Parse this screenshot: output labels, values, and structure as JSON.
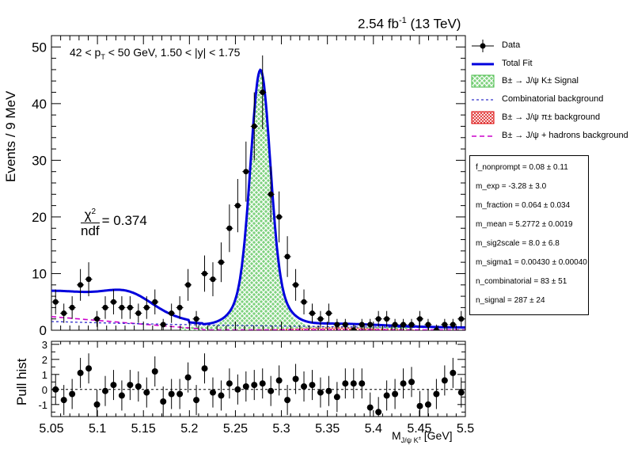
{
  "lumi_label": "2.54 fb",
  "lumi_exp": "-1",
  "lumi_energy": " (13 TeV)",
  "cut_label": {
    "part1": "42 < p",
    "sub": "T",
    "part2": " < 50 GeV, 1.50 < |y| < 1.75"
  },
  "chi2": {
    "num": "χ",
    "num_sup": "2",
    "den": "ndf",
    "value": " = 0.374"
  },
  "y_label_main": "Events / 9 MeV",
  "y_label_pull": "Pull hist",
  "x_label": {
    "base": "M",
    "sub": "J/ψ K",
    "sub_sup": "±",
    "unit": " [GeV]"
  },
  "legend": [
    {
      "label": "Data",
      "style": "data"
    },
    {
      "label": "Total Fit",
      "style": "line",
      "color": "#0000dd"
    },
    {
      "label": "B± → J/ψ K± Signal",
      "style": "hatch-green"
    },
    {
      "label": "Combinatorial background",
      "style": "dashed",
      "color": "#3333cc"
    },
    {
      "label": "B± → J/ψ π± background",
      "style": "hatch-red"
    },
    {
      "label": "B± → J/ψ + hadrons background",
      "style": "dashed",
      "color": "#cc00cc"
    }
  ],
  "fit_params": [
    "f_nonprompt =  0.08 ± 0.11",
    "m_exp = -3.28 ± 3.0",
    "m_fraction =  0.064 ± 0.034",
    "m_mean =  5.2772 ± 0.0019",
    "m_sig2scale =  8.0 ± 6.8",
    "m_sigma1 =  0.00430 ± 0.00040",
    "n_combinatorial =  83 ± 51",
    "n_signal =  287 ± 24"
  ],
  "chart_data": [
    {
      "type": "scatter",
      "panel": "main",
      "xlim": [
        5.05,
        5.5
      ],
      "ylim": [
        0,
        52
      ],
      "x_ticks": [
        5.05,
        5.1,
        5.15,
        5.2,
        5.25,
        5.3,
        5.35,
        5.4,
        5.45,
        5.5
      ],
      "y_ticks": [
        0,
        10,
        20,
        30,
        40,
        50
      ],
      "ylabel": "Events / 9 MeV",
      "series": [
        {
          "name": "Data",
          "x": [
            5.0545,
            5.0635,
            5.0725,
            5.0815,
            5.0905,
            5.0995,
            5.1085,
            5.1175,
            5.1265,
            5.1355,
            5.1445,
            5.1535,
            5.1625,
            5.1715,
            5.1805,
            5.1895,
            5.1985,
            5.2075,
            5.2165,
            5.2255,
            5.2345,
            5.2435,
            5.2525,
            5.2615,
            5.2705,
            5.2795,
            5.2885,
            5.2975,
            5.3065,
            5.3155,
            5.3245,
            5.3335,
            5.3425,
            5.3515,
            5.3605,
            5.3695,
            5.3785,
            5.3875,
            5.3965,
            5.4055,
            5.4145,
            5.4235,
            5.4325,
            5.4415,
            5.4505,
            5.4595,
            5.4685,
            5.4775,
            5.4865,
            5.4955
          ],
          "y": [
            5,
            3,
            4,
            8,
            9,
            2,
            4,
            5,
            4,
            4,
            3,
            4,
            5,
            1,
            3,
            4,
            8,
            2,
            10,
            9,
            12,
            18,
            22,
            28,
            36,
            42,
            24,
            20,
            13,
            8,
            5,
            3,
            2,
            3,
            1,
            1,
            0,
            1,
            1,
            2,
            2,
            1,
            1,
            1,
            2,
            1,
            0,
            1,
            1,
            2
          ],
          "yerr": [
            2.2,
            1.7,
            2.0,
            2.8,
            3.0,
            1.4,
            2.0,
            2.2,
            2.0,
            2.0,
            1.7,
            2.0,
            2.2,
            1.0,
            1.7,
            2.0,
            2.8,
            1.4,
            3.2,
            3.0,
            3.5,
            4.2,
            4.7,
            5.3,
            6.0,
            6.5,
            4.9,
            4.5,
            3.6,
            2.8,
            2.2,
            1.7,
            1.4,
            1.7,
            1.0,
            1.0,
            1.0,
            1.0,
            1.0,
            1.4,
            1.4,
            1.0,
            1.0,
            1.0,
            1.4,
            1.0,
            1.0,
            1.0,
            1.0,
            1.4
          ]
        },
        {
          "name": "Total Fit",
          "color": "#0000dd"
        },
        {
          "name": "B± → J/ψ K± Signal",
          "color": "#44bb44"
        },
        {
          "name": "Combinatorial background",
          "color": "#3333cc"
        },
        {
          "name": "B± → J/ψ π± background",
          "color": "#dd0000"
        },
        {
          "name": "B± → J/ψ + hadrons background",
          "color": "#cc00cc"
        }
      ]
    },
    {
      "type": "scatter",
      "panel": "pull",
      "xlim": [
        5.05,
        5.5
      ],
      "ylim": [
        -1.8,
        3.2
      ],
      "x_ticks": [
        5.05,
        5.1,
        5.15,
        5.2,
        5.25,
        5.3,
        5.35,
        5.4,
        5.45,
        5.5
      ],
      "y_ticks": [
        -1,
        0,
        1,
        2,
        3
      ],
      "xlabel": "M J/ψ K± [GeV]",
      "ylabel": "Pull hist",
      "x": [
        5.0545,
        5.0635,
        5.0725,
        5.0815,
        5.0905,
        5.0995,
        5.1085,
        5.1175,
        5.1265,
        5.1355,
        5.1445,
        5.1535,
        5.1625,
        5.1715,
        5.1805,
        5.1895,
        5.1985,
        5.2075,
        5.2165,
        5.2255,
        5.2345,
        5.2435,
        5.2525,
        5.2615,
        5.2705,
        5.2795,
        5.2885,
        5.2975,
        5.3065,
        5.3155,
        5.3245,
        5.3335,
        5.3425,
        5.3515,
        5.3605,
        5.3695,
        5.3785,
        5.3875,
        5.3965,
        5.4055,
        5.4145,
        5.4235,
        5.4325,
        5.4415,
        5.4505,
        5.4595,
        5.4685,
        5.4775,
        5.4865,
        5.4955
      ],
      "y": [
        0.0,
        -0.7,
        -0.3,
        1.1,
        1.4,
        -1.0,
        -0.1,
        0.3,
        -0.4,
        0.3,
        0.2,
        -0.2,
        1.2,
        -0.8,
        -0.3,
        -0.3,
        0.8,
        -0.7,
        1.4,
        -0.2,
        -0.4,
        0.4,
        0.0,
        0.2,
        0.3,
        0.4,
        -0.1,
        0.6,
        -0.7,
        0.7,
        0.2,
        0.3,
        -0.2,
        -0.1,
        -0.5,
        0.4,
        0.4,
        0.4,
        -1.2,
        -1.5,
        -0.4,
        -0.3,
        0.4,
        0.5,
        -1.1,
        -1.0,
        -0.3,
        0.6,
        1.1,
        -0.2
      ],
      "yerr": [
        1,
        1,
        1,
        1,
        1,
        1,
        1,
        1,
        1,
        1,
        1,
        1,
        1,
        1,
        1,
        1,
        1,
        1,
        1,
        1,
        1,
        1,
        1,
        1,
        1,
        1,
        1,
        1,
        1,
        1,
        1,
        1,
        1,
        1,
        1,
        1,
        1,
        1,
        1,
        1,
        1,
        1,
        1,
        1,
        1,
        1,
        1,
        1,
        1,
        1
      ]
    }
  ]
}
